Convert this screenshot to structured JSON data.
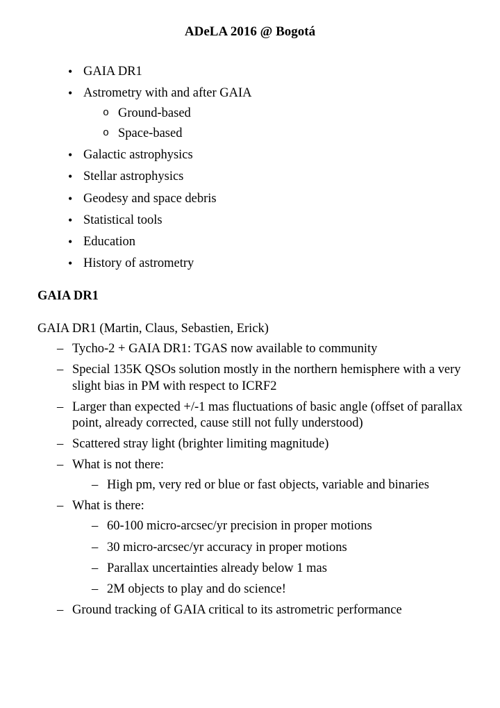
{
  "title": "ADeLA 2016 @ Bogotá",
  "topics": [
    {
      "label": "GAIA DR1"
    },
    {
      "label": "Astrometry with and after GAIA",
      "sub": [
        {
          "label": "Ground-based"
        },
        {
          "label": "Space-based"
        }
      ]
    },
    {
      "label": "Galactic astrophysics"
    },
    {
      "label": "Stellar astrophysics"
    },
    {
      "label": "Geodesy and space debris"
    },
    {
      "label": "Statistical tools"
    },
    {
      "label": "Education"
    },
    {
      "label": "History of astrometry"
    }
  ],
  "section": {
    "heading": "GAIA DR1",
    "lead": "GAIA DR1 (Martin, Claus, Sebastien, Erick)",
    "items": [
      {
        "text": "Tycho-2 + GAIA DR1: TGAS now available to community"
      },
      {
        "text": "Special 135K QSOs solution mostly in the northern hemisphere with a very slight bias in PM with respect to ICRF2"
      },
      {
        "text": "Larger than expected +/-1 mas fluctuations of basic angle (offset of parallax point, already corrected, cause still not fully understood)"
      },
      {
        "text": "Scattered stray light (brighter limiting magnitude)"
      },
      {
        "text": "What is not there:",
        "sub": [
          {
            "text": "High pm, very red or blue or fast objects, variable and binaries"
          }
        ]
      },
      {
        "text": "What is there:",
        "sub": [
          {
            "text": "60-100 micro-arcsec/yr precision in proper motions"
          },
          {
            "text": "30 micro-arcsec/yr accuracy in proper motions"
          },
          {
            "text": "Parallax uncertainties already below 1 mas"
          },
          {
            "text": "2M objects to play and do science!"
          }
        ]
      },
      {
        "text": "Ground tracking of GAIA critical to its astrometric performance"
      }
    ]
  }
}
